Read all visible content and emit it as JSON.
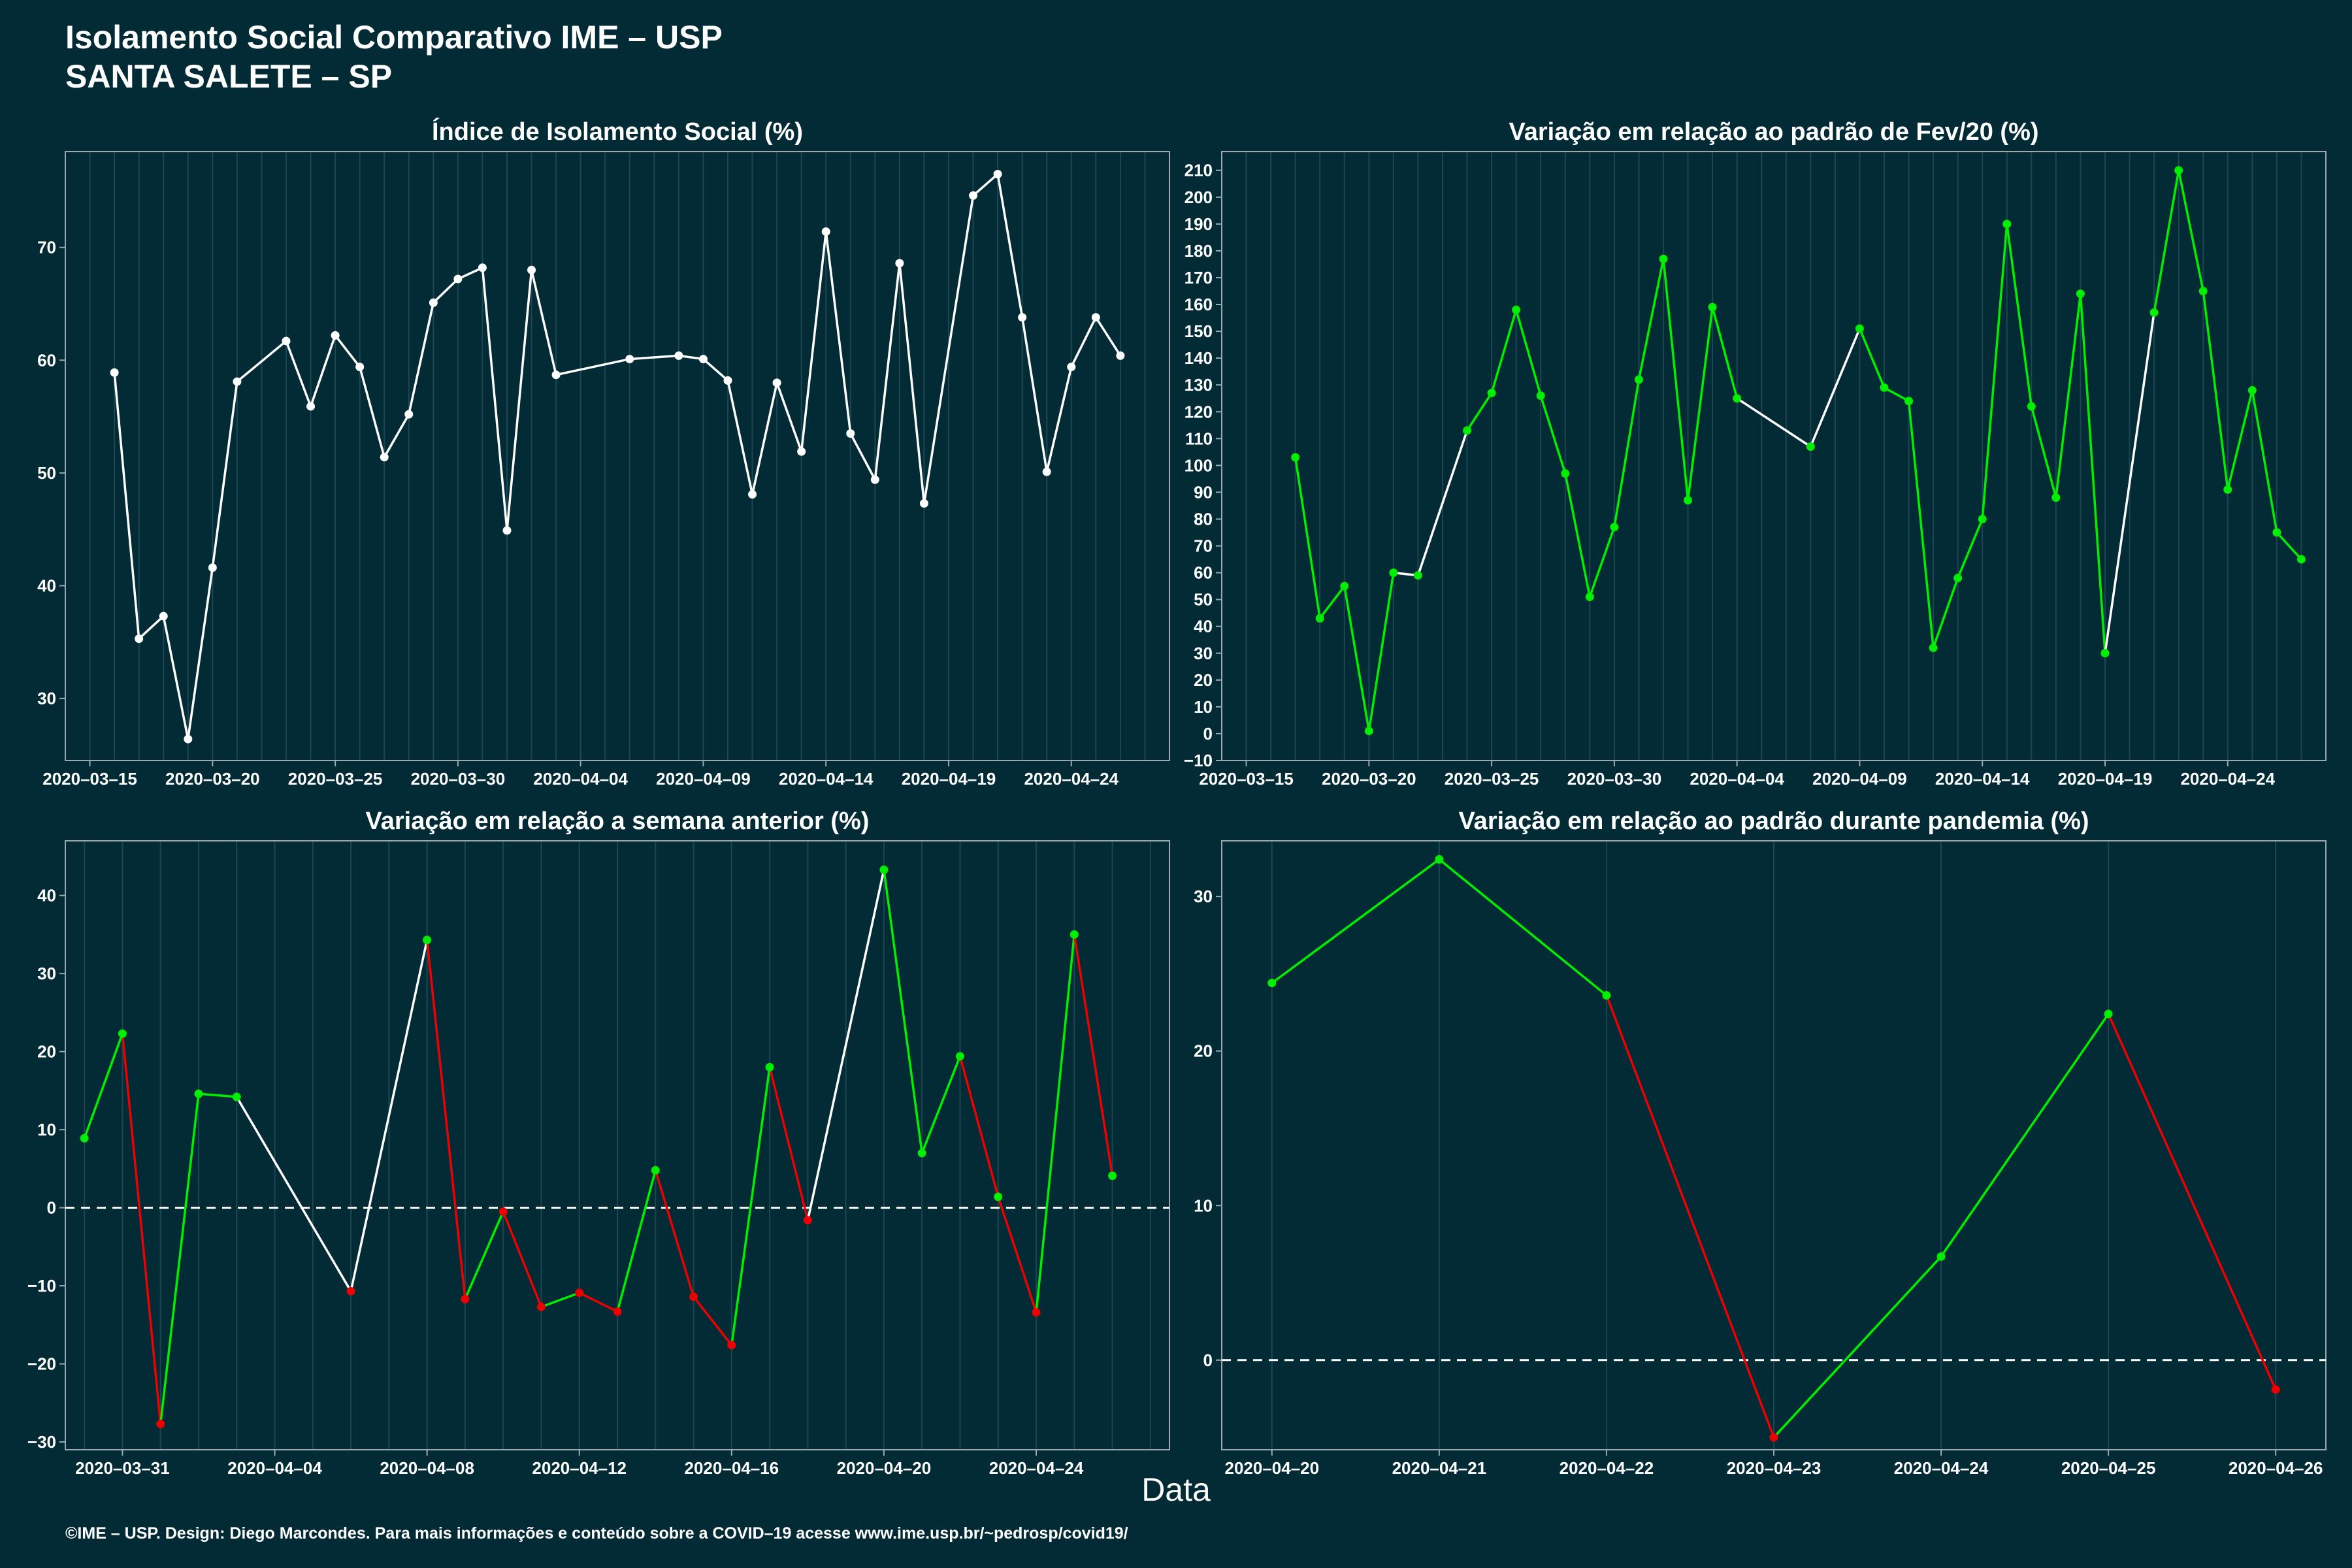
{
  "header": {
    "title_line1": "Isolamento Social Comparativo IME – USP",
    "title_line2": "SANTA SALETE – SP"
  },
  "x_title": "Data",
  "footer": "©IME – USP. Design: Diego Marcondes. Para mais informações e conteúdo sobre a COVID–19 acesse www.ime.usp.br/~pedrosp/covid19/",
  "colors": {
    "background": "#022b36",
    "line_white": "#ffffff",
    "increase": "#00ee00",
    "decrease": "#ee0000",
    "grid": "#1c4752",
    "axis": "#9aaab0"
  },
  "chart_data": [
    {
      "type": "line",
      "title": "Índice de Isolamento Social (%)",
      "x_type": "date",
      "ylim": [
        24.5,
        78.5
      ],
      "yticks": [
        30,
        40,
        50,
        60,
        70
      ],
      "xticks": [
        "2020-03-15",
        "2020-03-20",
        "2020-03-25",
        "2020-03-30",
        "2020-04-04",
        "2020-04-09",
        "2020-04-14",
        "2020-04-19",
        "2020-04-24"
      ],
      "xlim": [
        "2020-03-14",
        "2020-04-28"
      ],
      "grid": true,
      "x": [
        "2020-03-16",
        "2020-03-17",
        "2020-03-18",
        "2020-03-19",
        "2020-03-20",
        "2020-03-21",
        "2020-03-23",
        "2020-03-24",
        "2020-03-25",
        "2020-03-26",
        "2020-03-27",
        "2020-03-28",
        "2020-03-29",
        "2020-03-30",
        "2020-03-31",
        "2020-04-01",
        "2020-04-02",
        "2020-04-03",
        "2020-04-06",
        "2020-04-08",
        "2020-04-09",
        "2020-04-10",
        "2020-04-11",
        "2020-04-12",
        "2020-04-13",
        "2020-04-14",
        "2020-04-15",
        "2020-04-16",
        "2020-04-17",
        "2020-04-18",
        "2020-04-20",
        "2020-04-21",
        "2020-04-22",
        "2020-04-23",
        "2020-04-24",
        "2020-04-25",
        "2020-04-26"
      ],
      "values": [
        58.9,
        35.3,
        37.3,
        26.4,
        41.6,
        58.1,
        61.7,
        55.9,
        62.2,
        59.4,
        51.4,
        55.2,
        65.1,
        67.2,
        68.2,
        44.9,
        68.0,
        58.7,
        60.1,
        60.4,
        60.1,
        58.2,
        48.1,
        58.0,
        51.9,
        71.4,
        53.5,
        49.4,
        68.6,
        47.3,
        74.6,
        76.5,
        63.8,
        50.1,
        59.4,
        63.8,
        60.4
      ],
      "point_colors": [
        "w",
        "w",
        "w",
        "w",
        "w",
        "w",
        "w",
        "w",
        "w",
        "w",
        "w",
        "w",
        "w",
        "w",
        "w",
        "w",
        "w",
        "w",
        "w",
        "w",
        "w",
        "w",
        "w",
        "w",
        "w",
        "w",
        "w",
        "w",
        "w",
        "w",
        "w",
        "w",
        "w",
        "w",
        "w",
        "w",
        "w"
      ],
      "segment_colors": [
        "w",
        "w",
        "w",
        "w",
        "w",
        "w",
        "w",
        "w",
        "w",
        "w",
        "w",
        "w",
        "w",
        "w",
        "w",
        "w",
        "w",
        "w",
        "w",
        "w",
        "w",
        "w",
        "w",
        "w",
        "w",
        "w",
        "w",
        "w",
        "w",
        "w",
        "w",
        "w",
        "w",
        "w",
        "w",
        "w"
      ]
    },
    {
      "type": "line",
      "title": "Variação em relação ao padrão de Fev/20 (%)",
      "x_type": "date",
      "ylim": [
        -10,
        217
      ],
      "yticks": [
        -10,
        0,
        10,
        20,
        30,
        40,
        50,
        60,
        70,
        80,
        90,
        100,
        110,
        120,
        130,
        140,
        150,
        160,
        170,
        180,
        190,
        200,
        210
      ],
      "xticks": [
        "2020-03-15",
        "2020-03-20",
        "2020-03-25",
        "2020-03-30",
        "2020-04-04",
        "2020-04-09",
        "2020-04-14",
        "2020-04-19",
        "2020-04-24"
      ],
      "xlim": [
        "2020-03-14",
        "2020-04-28"
      ],
      "grid": true,
      "x": [
        "2020-03-17",
        "2020-03-18",
        "2020-03-19",
        "2020-03-20",
        "2020-03-21",
        "2020-03-22",
        "2020-03-24",
        "2020-03-25",
        "2020-03-26",
        "2020-03-27",
        "2020-03-28",
        "2020-03-29",
        "2020-03-30",
        "2020-03-31",
        "2020-04-01",
        "2020-04-02",
        "2020-04-03",
        "2020-04-04",
        "2020-04-07",
        "2020-04-09",
        "2020-04-10",
        "2020-04-11",
        "2020-04-12",
        "2020-04-13",
        "2020-04-14",
        "2020-04-15",
        "2020-04-16",
        "2020-04-17",
        "2020-04-18",
        "2020-04-19",
        "2020-04-21",
        "2020-04-22",
        "2020-04-23",
        "2020-04-24",
        "2020-04-25",
        "2020-04-26",
        "2020-04-27"
      ],
      "values": [
        103,
        43,
        55,
        1,
        60,
        59,
        113,
        127,
        158,
        126,
        97,
        51,
        77,
        132,
        177,
        87,
        159,
        125,
        107,
        151,
        129,
        124,
        32,
        58,
        80,
        190,
        122,
        88,
        164,
        30,
        157,
        210,
        165,
        91,
        128,
        75,
        65
      ],
      "point_colors": [
        "g",
        "g",
        "g",
        "g",
        "g",
        "g",
        "g",
        "g",
        "g",
        "g",
        "g",
        "g",
        "g",
        "g",
        "g",
        "g",
        "g",
        "g",
        "g",
        "g",
        "g",
        "g",
        "g",
        "g",
        "g",
        "g",
        "g",
        "g",
        "g",
        "g",
        "g",
        "g",
        "g",
        "g",
        "g",
        "g",
        "g"
      ],
      "segment_colors": [
        "g",
        "g",
        "g",
        "g",
        "w",
        "w",
        "g",
        "g",
        "g",
        "g",
        "g",
        "g",
        "g",
        "g",
        "g",
        "g",
        "g",
        "w",
        "w",
        "g",
        "g",
        "g",
        "g",
        "g",
        "g",
        "g",
        "g",
        "g",
        "g",
        "w",
        "g",
        "g",
        "g",
        "g",
        "g",
        "g"
      ]
    },
    {
      "type": "line",
      "title": "Variação em relação a semana anterior (%)",
      "x_type": "date",
      "ylim": [
        -31,
        47
      ],
      "yticks": [
        -30,
        -20,
        -10,
        0,
        10,
        20,
        30,
        40
      ],
      "xticks": [
        "2020-03-31",
        "2020-04-04",
        "2020-04-08",
        "2020-04-12",
        "2020-04-16",
        "2020-04-20",
        "2020-04-24"
      ],
      "xlim": [
        "2020-03-29.5",
        "2020-04-27.5"
      ],
      "zero_line": true,
      "grid": true,
      "x": [
        "2020-03-30",
        "2020-03-31",
        "2020-04-01",
        "2020-04-02",
        "2020-04-03",
        "2020-04-06",
        "2020-04-08",
        "2020-04-09",
        "2020-04-10",
        "2020-04-11",
        "2020-04-12",
        "2020-04-13",
        "2020-04-14",
        "2020-04-15",
        "2020-04-16",
        "2020-04-17",
        "2020-04-18",
        "2020-04-20",
        "2020-04-21",
        "2020-04-22",
        "2020-04-23",
        "2020-04-24",
        "2020-04-25",
        "2020-04-26"
      ],
      "values": [
        8.9,
        22.3,
        -27.7,
        14.6,
        14.2,
        -10.7,
        34.3,
        -11.7,
        -0.5,
        -12.7,
        -10.9,
        -13.3,
        4.8,
        -11.4,
        -17.6,
        18.0,
        -1.6,
        43.3,
        7.0,
        19.4,
        1.4,
        -13.4,
        35.0,
        4.1
      ],
      "point_colors": [
        "g",
        "g",
        "r",
        "g",
        "g",
        "r",
        "g",
        "r",
        "r",
        "r",
        "r",
        "r",
        "g",
        "r",
        "r",
        "g",
        "r",
        "g",
        "g",
        "g",
        "g",
        "r",
        "g",
        "g"
      ],
      "segment_colors": [
        "g",
        "r",
        "g",
        "g",
        "w",
        "w",
        "r",
        "g",
        "r",
        "g",
        "r",
        "g",
        "r",
        "r",
        "g",
        "r",
        "w",
        "g",
        "g",
        "r",
        "r",
        "g",
        "r"
      ]
    },
    {
      "type": "line",
      "title": "Variação em relação ao padrão durante pandemia (%)",
      "x_type": "date",
      "ylim": [
        -5.8,
        33.6
      ],
      "yticks": [
        0,
        10,
        20,
        30
      ],
      "xticks": [
        "2020-04-20",
        "2020-04-21",
        "2020-04-22",
        "2020-04-23",
        "2020-04-24",
        "2020-04-25",
        "2020-04-26"
      ],
      "xlim": [
        "2020-04-19.7",
        "2020-04-26.3"
      ],
      "zero_line": true,
      "grid": true,
      "x": [
        "2020-04-20",
        "2020-04-21",
        "2020-04-22",
        "2020-04-23",
        "2020-04-24",
        "2020-04-25",
        "2020-04-26"
      ],
      "values": [
        24.4,
        32.4,
        23.6,
        -5.0,
        6.7,
        22.4,
        -1.9
      ],
      "point_colors": [
        "g",
        "g",
        "g",
        "r",
        "g",
        "g",
        "r"
      ],
      "segment_colors": [
        "g",
        "g",
        "r",
        "g",
        "g",
        "r"
      ]
    }
  ]
}
